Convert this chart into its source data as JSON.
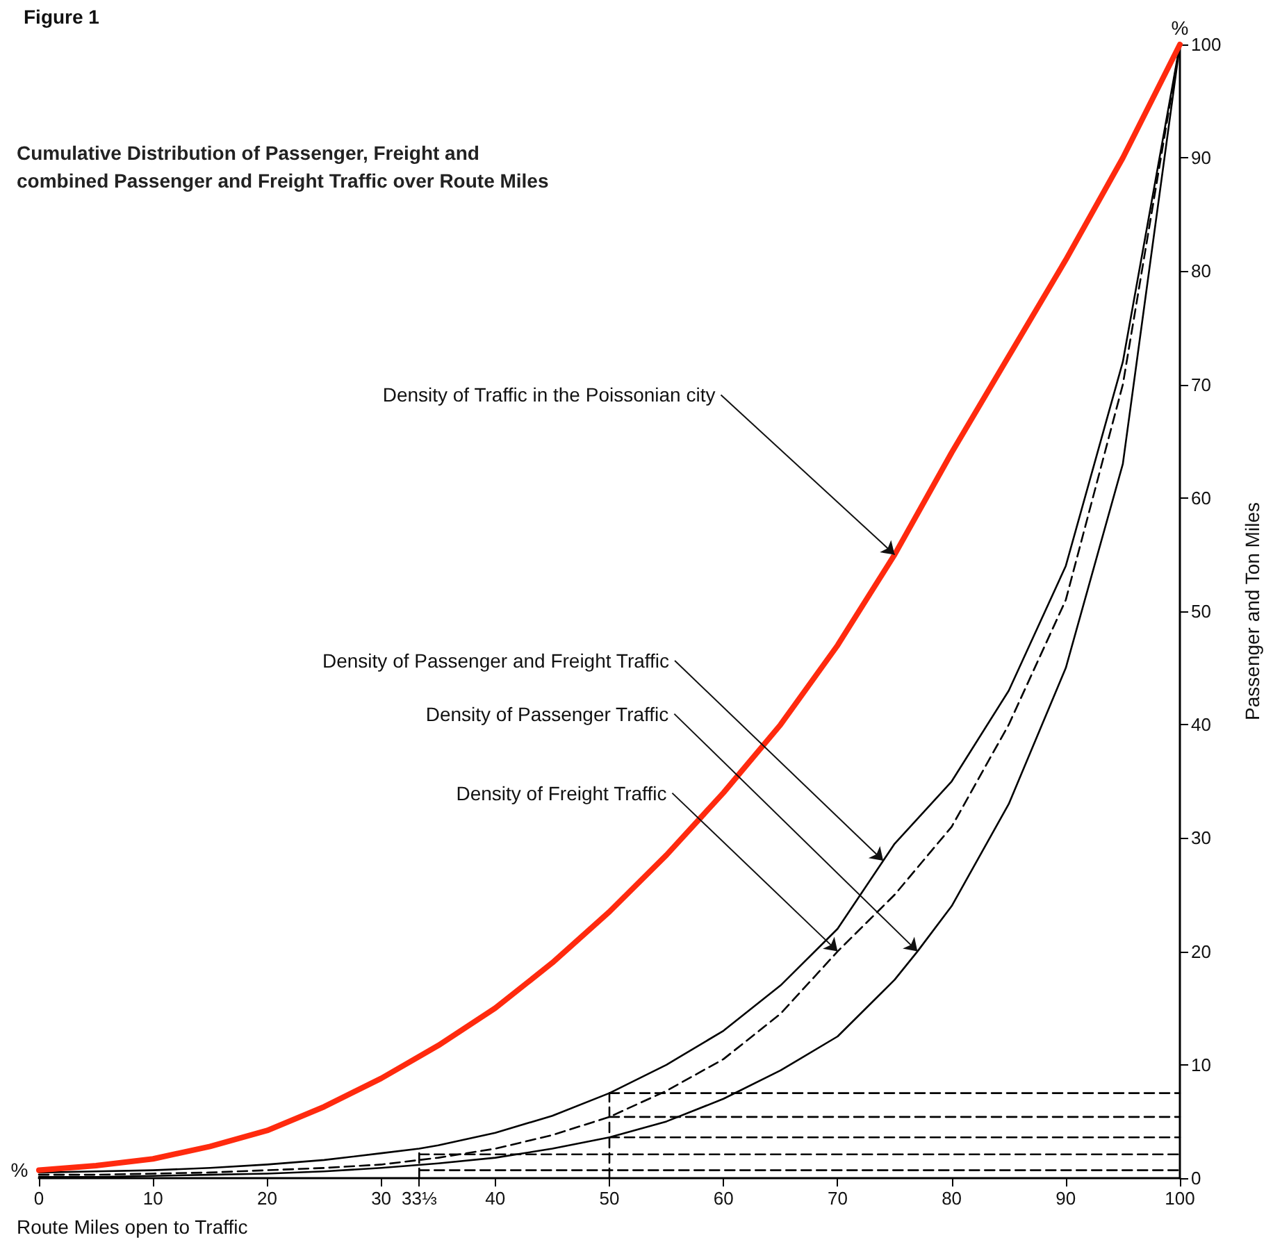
{
  "chart_data": {
    "type": "line",
    "title": "Figure 1",
    "subtitle": "Cumulative Distribution of Passenger, Freight and combined Passenger and Freight Traffic over Route Miles",
    "xlabel": "Route Miles open to Traffic",
    "ylabel": "Passenger and Ton Miles",
    "annotations": [
      {
        "text": "Density of Traffic in the Poissonian city",
        "x": 75,
        "y": 55
      },
      {
        "text": "Density of Passenger and Freight Traffic",
        "x": 74,
        "y": 28
      },
      {
        "text": "Density of Passenger Traffic",
        "x": 77,
        "y": 20
      },
      {
        "text": "Density of Freight Traffic",
        "x": 70,
        "y": 20
      },
      "%",
      "%"
    ],
    "xlim": [
      0,
      100
    ],
    "xticks": [
      0,
      10,
      20,
      30,
      {
        "value": 33.33,
        "label": "33⅓"
      },
      40,
      50,
      60,
      70,
      80,
      90,
      100
    ],
    "ylim": [
      0,
      100
    ],
    "yticks": [
      0,
      10,
      20,
      30,
      40,
      50,
      60,
      70,
      80,
      90,
      100
    ],
    "grid": false,
    "marker": "none",
    "series": [
      {
        "color": "#ff2a0e",
        "x": [
          0,
          5,
          10,
          15,
          20,
          25,
          30,
          35,
          40,
          45,
          50,
          55,
          60,
          65,
          70,
          75,
          80,
          85,
          90,
          95,
          100
        ],
        "values": [
          0.7,
          1.1,
          1.7,
          2.8,
          4.2,
          6.3,
          8.8,
          11.7,
          15,
          19,
          23.5,
          28.5,
          34,
          40,
          47,
          55,
          64,
          72.5,
          81,
          90,
          100
        ]
      },
      {
        "color": "#000000",
        "line_style": "solid",
        "x": [
          0,
          5,
          10,
          15,
          20,
          25,
          30,
          33.33,
          35,
          40,
          45,
          50,
          55,
          60,
          65,
          70,
          74,
          75,
          80,
          85,
          90,
          95,
          100
        ],
        "values": [
          0.5,
          0.6,
          0.7,
          0.9,
          1.2,
          1.6,
          2.2,
          2.6,
          2.9,
          4,
          5.5,
          7.5,
          10,
          13,
          17,
          22,
          28,
          29.5,
          35,
          43,
          54,
          72,
          100
        ]
      },
      {
        "color": "#000000",
        "line_style": "dashed",
        "x": [
          0,
          5,
          10,
          15,
          20,
          25,
          30,
          35,
          40,
          45,
          50,
          55,
          60,
          65,
          70,
          75,
          80,
          85,
          90,
          95,
          100
        ],
        "values": [
          0.3,
          0.3,
          0.4,
          0.5,
          0.7,
          0.9,
          1.2,
          1.8,
          2.6,
          3.8,
          5.4,
          7.7,
          10.5,
          14.5,
          20,
          25,
          31,
          40,
          51,
          70,
          100
        ]
      },
      {
        "color": "#000000",
        "line_style": "solid",
        "x": [
          0,
          5,
          10,
          15,
          20,
          25,
          30,
          35,
          40,
          45,
          50,
          55,
          60,
          65,
          70,
          75,
          77,
          80,
          85,
          90,
          95,
          100
        ],
        "values": [
          0.1,
          0.1,
          0.2,
          0.3,
          0.4,
          0.6,
          0.9,
          1.3,
          1.8,
          2.6,
          3.6,
          5,
          7,
          9.5,
          12.5,
          17.5,
          20,
          24,
          33,
          45,
          63,
          100
        ]
      },
      {
        "color": "#000000",
        "line_style": "dashed",
        "x": [
          50,
          100
        ],
        "values": [
          7.5,
          7.5
        ]
      },
      {
        "color": "#000000",
        "line_style": "dashed",
        "x": [
          50,
          100
        ],
        "values": [
          5.4,
          5.4
        ]
      },
      {
        "color": "#000000",
        "line_style": "dashed",
        "x": [
          50,
          100
        ],
        "values": [
          3.6,
          3.6
        ]
      },
      {
        "color": "#000000",
        "line_style": "dashed",
        "x": [
          33.33,
          100
        ],
        "values": [
          2.1,
          2.1
        ]
      },
      {
        "color": "#000000",
        "line_style": "dashed",
        "x": [
          33.33,
          100
        ],
        "values": [
          0.7,
          0.7
        ]
      },
      {
        "color": "#000000",
        "line_style": "dashed",
        "x": [
          50,
          50
        ],
        "values": [
          0,
          7.5
        ]
      },
      {
        "color": "#000000",
        "line_style": "dashed",
        "x": [
          33.33,
          33.33
        ],
        "values": [
          0,
          2.5
        ]
      }
    ]
  }
}
